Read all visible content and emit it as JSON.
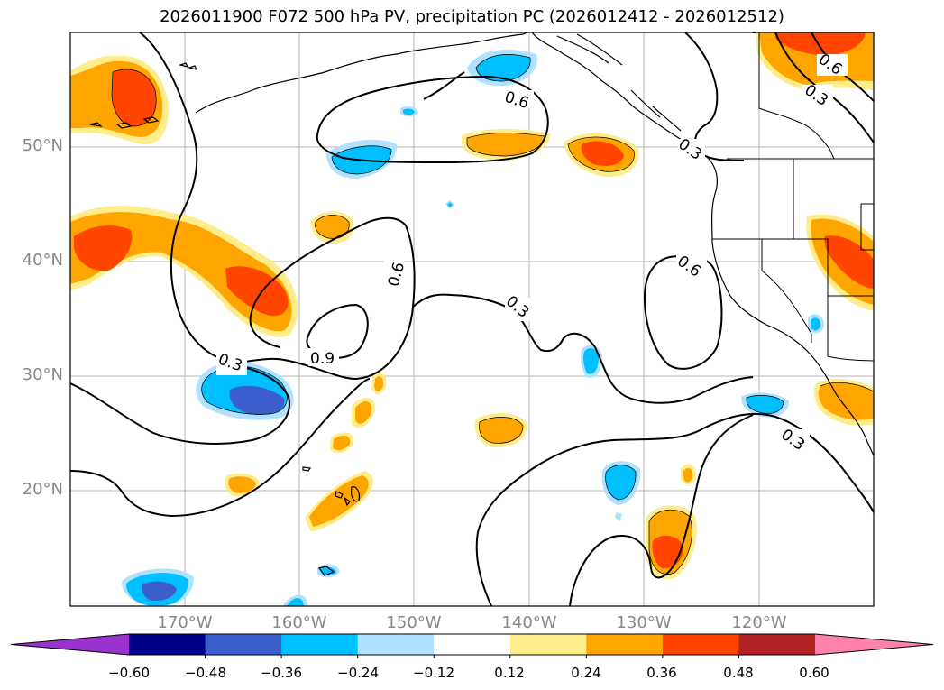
{
  "title": "2026011900 F072 500 hPa PV, precipitation PC (2026012412 - 2026012512)",
  "lat_labels": [
    "50°N",
    "40°N",
    "30°N",
    "20°N"
  ],
  "lon_labels": [
    "170°W",
    "160°W",
    "150°W",
    "140°W",
    "130°W",
    "120°W"
  ],
  "contour_labels": [
    "0.6",
    "0.6",
    "0.6",
    "0.6",
    "0.3",
    "0.3",
    "0.3",
    "0.9",
    "0.3",
    "0.3"
  ],
  "colorbar": {
    "ticks": [
      "−0.60",
      "−0.48",
      "−0.36",
      "−0.24",
      "−0.12",
      "0.12",
      "0.24",
      "0.36",
      "0.48",
      "0.60"
    ],
    "colors": [
      "#9a32cd",
      "#00008b",
      "#3a5fcd",
      "#00bfff",
      "#b0e2ff",
      "#ffffff",
      "#ffec8b",
      "#ffa500",
      "#ff4500",
      "#b22222",
      "#ff82ab"
    ]
  }
}
